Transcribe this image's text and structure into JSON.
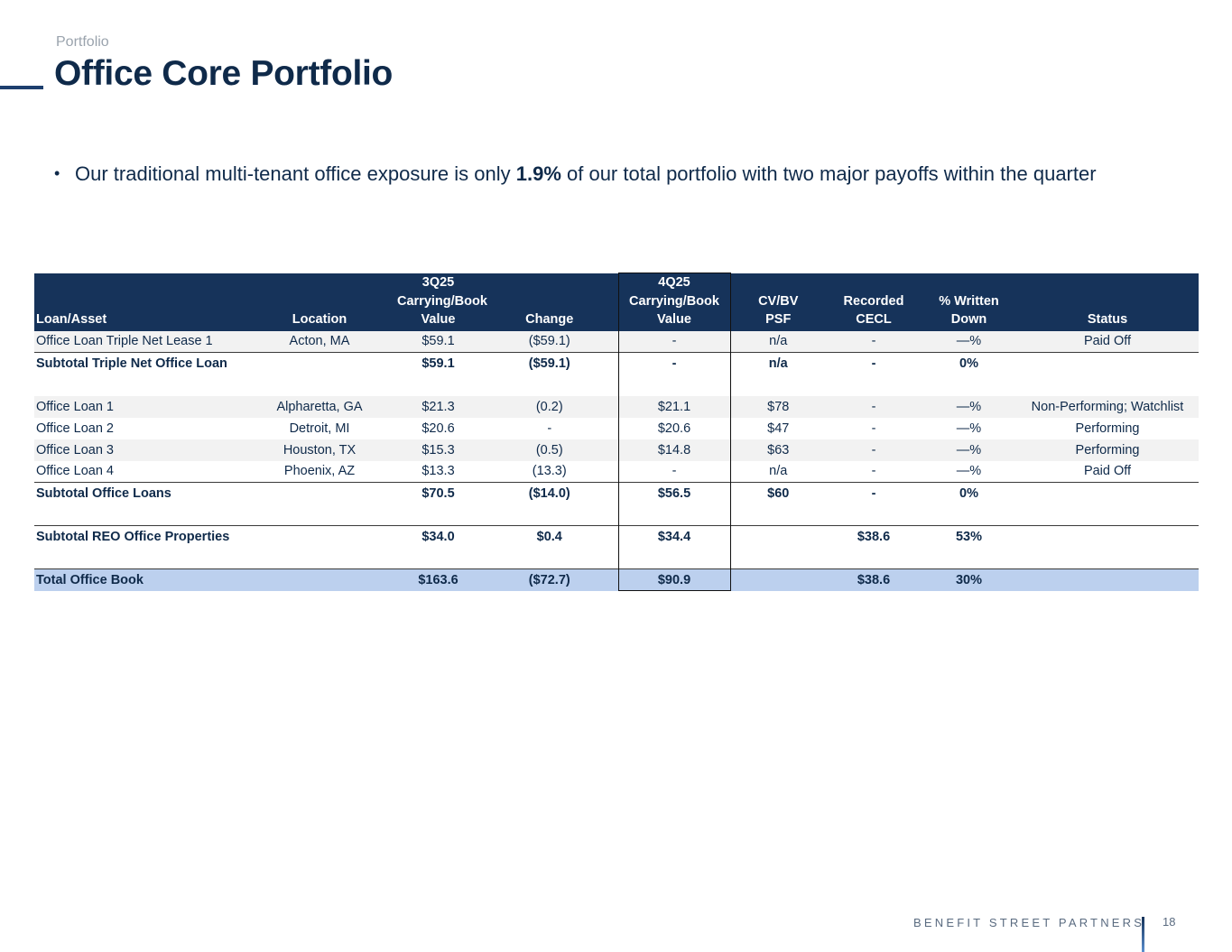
{
  "header": {
    "kicker": "Portfolio",
    "title": "Office Core Portfolio"
  },
  "bullet": {
    "prefix": "Our traditional multi-tenant office exposure is only ",
    "highlight": "1.9%",
    "suffix": " of our total portfolio with two major payoffs within the quarter"
  },
  "table": {
    "headers": {
      "loan_asset": "Loan/Asset",
      "location": "Location",
      "q3_l1": "3Q25",
      "q3_l2": "Carrying/Book",
      "q3_l3": "Value",
      "change": "Change",
      "q4_l1": "4Q25",
      "q4_l2": "Carrying/Book",
      "q4_l3": "Value",
      "cvbv_l1": "CV/BV",
      "cvbv_l2": "PSF",
      "cecl_l1": "Recorded",
      "cecl_l2": "CECL",
      "written_l1": "% Written",
      "written_l2": "Down",
      "status": "Status"
    },
    "rows": [
      {
        "name": "Office Loan Triple Net Lease 1",
        "location": "Acton, MA",
        "q3": "$59.1",
        "change": "($59.1)",
        "q4": "-",
        "cvbv": "n/a",
        "cecl": "-",
        "written": "—%",
        "status": "Paid Off"
      },
      {
        "name": "Subtotal Triple Net Office Loan",
        "location": "",
        "q3": "$59.1",
        "change": "($59.1)",
        "q4": "-",
        "cvbv": "n/a",
        "cecl": "-",
        "written": "0%",
        "status": ""
      },
      {
        "name": "Office Loan 1",
        "location": "Alpharetta, GA",
        "q3": "$21.3",
        "change": "(0.2)",
        "q4": "$21.1",
        "cvbv": "$78",
        "cecl": "-",
        "written": "—%",
        "status": "Non-Performing; Watchlist"
      },
      {
        "name": "Office Loan 2",
        "location": "Detroit, MI",
        "q3": "$20.6",
        "change": "-",
        "q4": "$20.6",
        "cvbv": "$47",
        "cecl": "-",
        "written": "—%",
        "status": "Performing"
      },
      {
        "name": "Office Loan 3",
        "location": "Houston, TX",
        "q3": "$15.3",
        "change": "(0.5)",
        "q4": "$14.8",
        "cvbv": "$63",
        "cecl": "-",
        "written": "—%",
        "status": "Performing"
      },
      {
        "name": "Office Loan 4",
        "location": "Phoenix, AZ",
        "q3": "$13.3",
        "change": "(13.3)",
        "q4": "-",
        "cvbv": "n/a",
        "cecl": "-",
        "written": "—%",
        "status": "Paid Off"
      },
      {
        "name": "Subtotal Office Loans",
        "location": "",
        "q3": "$70.5",
        "change": "($14.0)",
        "q4": "$56.5",
        "cvbv": "$60",
        "cecl": "-",
        "written": "0%",
        "status": ""
      },
      {
        "name": "Subtotal REO Office Properties",
        "location": "",
        "q3": "$34.0",
        "change": "$0.4",
        "q4": "$34.4",
        "cvbv": "",
        "cecl": "$38.6",
        "written": "53%",
        "status": ""
      },
      {
        "name": "Total Office Book",
        "location": "",
        "q3": "$163.6",
        "change": "($72.7)",
        "q4": "$90.9",
        "cvbv": "",
        "cecl": "$38.6",
        "written": "30%",
        "status": ""
      }
    ]
  },
  "footer": {
    "brand": "BENEFIT STREET PARTNERS",
    "page_number": "18"
  }
}
